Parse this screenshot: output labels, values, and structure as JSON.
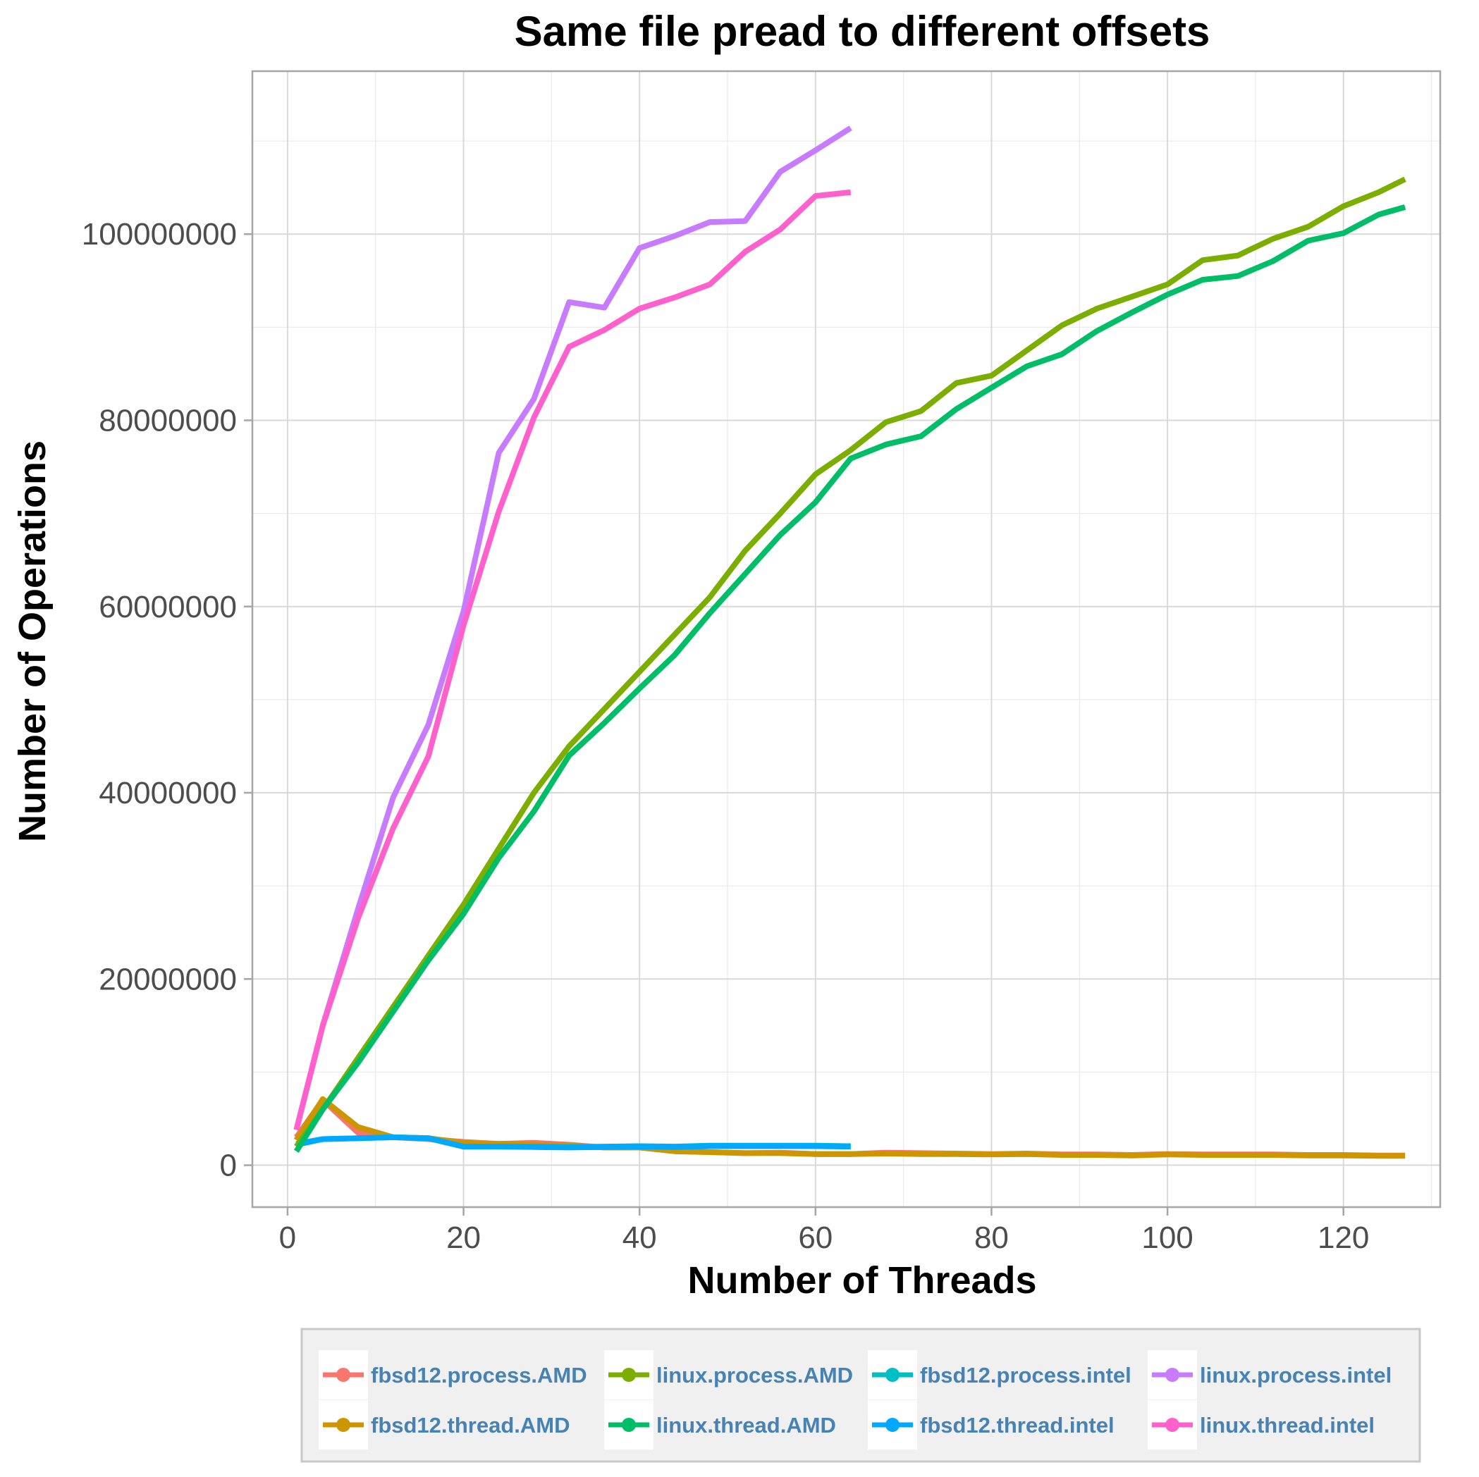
{
  "chart_data": {
    "type": "line",
    "title": "Same file pread to different offsets",
    "xlabel": "Number of Threads",
    "ylabel": "Number of Operations",
    "xlim": [
      -4,
      131
    ],
    "ylim": [
      -4500000,
      117500000
    ],
    "x_ticks": [
      0,
      20,
      40,
      60,
      80,
      100,
      120
    ],
    "x_tick_labels": [
      "0",
      "20",
      "40",
      "60",
      "80",
      "100",
      "120"
    ],
    "y_ticks": [
      0,
      20000000,
      40000000,
      60000000,
      80000000,
      100000000
    ],
    "y_tick_labels": [
      "0",
      "20000000",
      "40000000",
      "60000000",
      "80000000",
      "100000000"
    ],
    "grid": true,
    "legend_position": "bottom",
    "series": [
      {
        "name": "fbsd12.process.AMD",
        "color": "#F8766D",
        "x": [
          1,
          4,
          8,
          12,
          16,
          20,
          24,
          28,
          32,
          36,
          40,
          44,
          48,
          52,
          56,
          60,
          64,
          68,
          72,
          76,
          80,
          84,
          88,
          92,
          96,
          100,
          104,
          108,
          112,
          116,
          120,
          124,
          127
        ],
        "y": [
          3000000,
          7000000,
          3500000,
          3000000,
          2800000,
          2500000,
          2300000,
          2400000,
          2200000,
          1900000,
          1900000,
          1500000,
          1400000,
          1300000,
          1350000,
          1200000,
          1200000,
          1350000,
          1300000,
          1250000,
          1200000,
          1250000,
          1150000,
          1150000,
          1100000,
          1200000,
          1150000,
          1150000,
          1150000,
          1100000,
          1100000,
          1050000,
          1050000
        ]
      },
      {
        "name": "fbsd12.thread.AMD",
        "color": "#CD9600",
        "x": [
          1,
          4,
          8,
          12,
          16,
          20,
          24,
          28,
          32,
          36,
          40,
          44,
          48,
          52,
          56,
          60,
          64,
          68,
          72,
          76,
          80,
          84,
          88,
          92,
          96,
          100,
          104,
          108,
          112,
          116,
          120,
          124,
          127
        ],
        "y": [
          2700000,
          7100000,
          4100000,
          3000000,
          2900000,
          2400000,
          2300000,
          2200000,
          2100000,
          1900000,
          1900000,
          1500000,
          1400000,
          1300000,
          1300000,
          1200000,
          1200000,
          1250000,
          1200000,
          1200000,
          1150000,
          1200000,
          1100000,
          1100000,
          1050000,
          1150000,
          1100000,
          1100000,
          1100000,
          1050000,
          1050000,
          1000000,
          1000000
        ]
      },
      {
        "name": "fbsd12.process.intel",
        "color": "#00BFC4",
        "x": [
          1,
          4,
          8,
          12,
          16,
          20,
          24,
          28,
          32,
          36,
          40,
          44,
          48,
          52,
          56,
          60,
          64
        ],
        "y": [
          2300000,
          2800000,
          2900000,
          3000000,
          2900000,
          2000000,
          2000000,
          2000000,
          1950000,
          2000000,
          2050000,
          2000000,
          2100000,
          2100000,
          2100000,
          2100000,
          2050000
        ]
      },
      {
        "name": "fbsd12.thread.intel",
        "color": "#00A9FF",
        "x": [
          1,
          4,
          8,
          12,
          16,
          20,
          24,
          28,
          32,
          36,
          40,
          44,
          48,
          52,
          56,
          60,
          64
        ],
        "y": [
          2200000,
          2800000,
          2900000,
          3000000,
          2900000,
          2000000,
          2000000,
          1950000,
          1900000,
          1950000,
          2000000,
          1950000,
          2050000,
          2050000,
          2050000,
          2050000,
          2000000
        ]
      },
      {
        "name": "linux.process.AMD",
        "color": "#7CAE00",
        "x": [
          1,
          4,
          8,
          12,
          16,
          20,
          24,
          28,
          32,
          36,
          40,
          44,
          48,
          52,
          56,
          60,
          64,
          68,
          72,
          76,
          80,
          84,
          88,
          92,
          96,
          100,
          104,
          108,
          112,
          116,
          120,
          124,
          127
        ],
        "y": [
          2000000,
          6000000,
          11500000,
          17000000,
          22500000,
          28000000,
          34000000,
          40000000,
          45000000,
          49000000,
          53000000,
          57000000,
          61000000,
          66000000,
          70000000,
          74200000,
          76800000,
          79800000,
          81000000,
          84000000,
          84800000,
          87500000,
          90200000,
          92000000,
          93300000,
          94600000,
          97200000,
          97700000,
          99500000,
          100800000,
          103000000,
          104500000,
          105900000
        ]
      },
      {
        "name": "linux.thread.AMD",
        "color": "#00BE67",
        "x": [
          1,
          4,
          8,
          12,
          16,
          20,
          24,
          28,
          32,
          36,
          40,
          44,
          48,
          52,
          56,
          60,
          64,
          68,
          72,
          76,
          80,
          84,
          88,
          92,
          96,
          100,
          104,
          108,
          112,
          116,
          120,
          124,
          127
        ],
        "y": [
          1500000,
          6000000,
          11000000,
          16500000,
          22000000,
          27000000,
          33000000,
          38000000,
          44000000,
          47500000,
          51200000,
          54800000,
          59300000,
          63500000,
          67700000,
          71200000,
          75900000,
          77400000,
          78300000,
          81200000,
          83500000,
          85800000,
          87100000,
          89600000,
          91600000,
          93500000,
          95100000,
          95500000,
          97100000,
          99300000,
          100100000,
          102100000,
          102900000
        ]
      },
      {
        "name": "linux.process.intel",
        "color": "#C77CFF",
        "x": [
          1,
          4,
          8,
          12,
          16,
          20,
          24,
          28,
          32,
          36,
          40,
          44,
          48,
          52,
          56,
          60,
          64
        ],
        "y": [
          3800000,
          15000000,
          27500000,
          39500000,
          47300000,
          59500000,
          76500000,
          82300000,
          92700000,
          92100000,
          98500000,
          99800000,
          101300000,
          101400000,
          106700000,
          109000000,
          111400000
        ]
      },
      {
        "name": "linux.thread.intel",
        "color": "#FF61CC",
        "x": [
          1,
          4,
          8,
          12,
          16,
          20,
          24,
          28,
          32,
          36,
          40,
          44,
          48,
          52,
          56,
          60,
          64
        ],
        "y": [
          3800000,
          15000000,
          26500000,
          36200000,
          43900000,
          58000000,
          70200000,
          80300000,
          87900000,
          89700000,
          92000000,
          93200000,
          94600000,
          98100000,
          100500000,
          104100000,
          104500000
        ]
      }
    ]
  },
  "legend_order": [
    "fbsd12.process.AMD",
    "linux.process.AMD",
    "fbsd12.process.intel",
    "linux.process.intel",
    "fbsd12.thread.AMD",
    "linux.thread.AMD",
    "fbsd12.thread.intel",
    "linux.thread.intel"
  ]
}
